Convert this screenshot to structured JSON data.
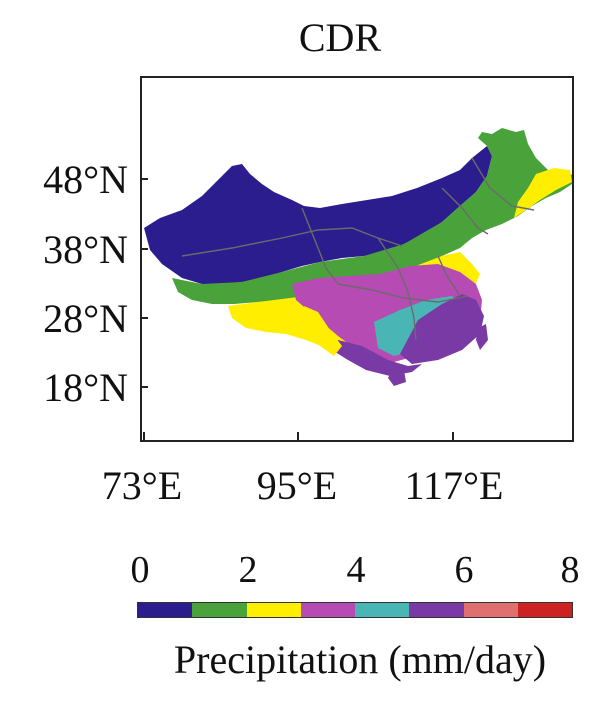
{
  "title": "CDR",
  "y_ticks": [
    "48°N",
    "38°N",
    "28°N",
    "18°N"
  ],
  "x_ticks": [
    "73°E",
    "95°E",
    "117°E"
  ],
  "colorbar": {
    "tick_labels": [
      "0",
      "2",
      "4",
      "6",
      "8"
    ],
    "label": "Precipitation (mm/day)",
    "colors": [
      "#2b1d8e",
      "#4aa33a",
      "#ffee00",
      "#b64bb3",
      "#4ab5b5",
      "#7a3aa6",
      "#e07070",
      "#cc2222"
    ]
  },
  "legend_bins_mm_per_day": [
    [
      0,
      1
    ],
    [
      1,
      2
    ],
    [
      2,
      3
    ],
    [
      3,
      4
    ],
    [
      4,
      5
    ],
    [
      5,
      6
    ],
    [
      6,
      7
    ],
    [
      7,
      8
    ]
  ]
}
